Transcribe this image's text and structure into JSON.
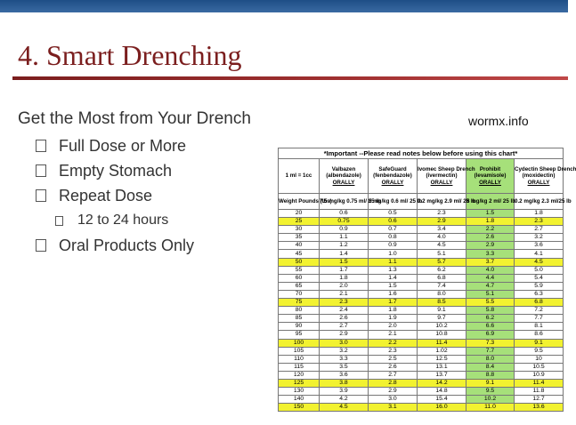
{
  "slide": {
    "title": "4. Smart Drenching",
    "lead": "Get the Most from Your Drench",
    "website": "wormx.info",
    "bullets": [
      {
        "text": "Full Dose or More",
        "sub": false
      },
      {
        "text": "Empty Stomach",
        "sub": false
      },
      {
        "text": "Repeat Dose",
        "sub": false
      },
      {
        "text": "12 to 24 hours",
        "sub": true
      },
      {
        "text": "Oral Products Only",
        "sub": false
      }
    ]
  },
  "table": {
    "note": "*Important --Please read notes below before using this chart*",
    "unit": "1 ml = 1cc",
    "weight_header": "Weight Pounds (lbs)",
    "products": [
      {
        "name": "Valbazen",
        "generic": "(albendazole)",
        "route": "ORALLY",
        "dose": "7.5 mg/kg 0.75 ml/ 25 lb"
      },
      {
        "name": "SafeGuard",
        "generic": "(fenbendazole)",
        "route": "ORALLY",
        "dose": "5 mg/kg 0.6 ml/ 25 lb"
      },
      {
        "name": "Ivomec Sheep Drench",
        "generic": "(ivermectin)",
        "route": "ORALLY",
        "dose": "0.2 mg/kg 2.9 ml/ 25 lb"
      },
      {
        "name": "Prohibit",
        "generic": "(levamisole)",
        "route": "ORALLY",
        "dose": "8 mg/kg 2 ml/ 25 lb"
      },
      {
        "name": "Cydectin Sheep Drench",
        "generic": "(moxidectin)",
        "route": "ORALLY",
        "dose": "0.2 mg/kg 2.3 ml/25 lb"
      }
    ],
    "highlight_color": "#f2f230",
    "product_highlight_color": "#a6e07a",
    "rows": [
      {
        "w": "20",
        "v": [
          "0.6",
          "0.5",
          "2.3",
          "1.5",
          "1.8"
        ],
        "hl": false
      },
      {
        "w": "25",
        "v": [
          "0.75",
          "0.6",
          "2.9",
          "1.8",
          "2.3"
        ],
        "hl": true
      },
      {
        "w": "30",
        "v": [
          "0.9",
          "0.7",
          "3.4",
          "2.2",
          "2.7"
        ],
        "hl": false
      },
      {
        "w": "35",
        "v": [
          "1.1",
          "0.8",
          "4.0",
          "2.6",
          "3.2"
        ],
        "hl": false
      },
      {
        "w": "40",
        "v": [
          "1.2",
          "0.9",
          "4.5",
          "2.9",
          "3.6"
        ],
        "hl": false
      },
      {
        "w": "45",
        "v": [
          "1.4",
          "1.0",
          "5.1",
          "3.3",
          "4.1"
        ],
        "hl": false
      },
      {
        "w": "50",
        "v": [
          "1.5",
          "1.1",
          "5.7",
          "3.7",
          "4.5"
        ],
        "hl": true
      },
      {
        "w": "55",
        "v": [
          "1.7",
          "1.3",
          "6.2",
          "4.0",
          "5.0"
        ],
        "hl": false
      },
      {
        "w": "60",
        "v": [
          "1.8",
          "1.4",
          "6.8",
          "4.4",
          "5.4"
        ],
        "hl": false
      },
      {
        "w": "65",
        "v": [
          "2.0",
          "1.5",
          "7.4",
          "4.7",
          "5.9"
        ],
        "hl": false
      },
      {
        "w": "70",
        "v": [
          "2.1",
          "1.6",
          "8.0",
          "5.1",
          "6.3"
        ],
        "hl": false
      },
      {
        "w": "75",
        "v": [
          "2.3",
          "1.7",
          "8.5",
          "5.5",
          "6.8"
        ],
        "hl": true
      },
      {
        "w": "80",
        "v": [
          "2.4",
          "1.8",
          "9.1",
          "5.8",
          "7.2"
        ],
        "hl": false
      },
      {
        "w": "85",
        "v": [
          "2.6",
          "1.9",
          "9.7",
          "6.2",
          "7.7"
        ],
        "hl": false
      },
      {
        "w": "90",
        "v": [
          "2.7",
          "2.0",
          "10.2",
          "6.6",
          "8.1"
        ],
        "hl": false
      },
      {
        "w": "95",
        "v": [
          "2.9",
          "2.1",
          "10.8",
          "6.9",
          "8.6"
        ],
        "hl": false
      },
      {
        "w": "100",
        "v": [
          "3.0",
          "2.2",
          "11.4",
          "7.3",
          "9.1"
        ],
        "hl": true
      },
      {
        "w": "105",
        "v": [
          "3.2",
          "2.3",
          "1.02",
          "7.7",
          "9.5"
        ],
        "hl": false
      },
      {
        "w": "110",
        "v": [
          "3.3",
          "2.5",
          "12.5",
          "8.0",
          "10"
        ],
        "hl": false
      },
      {
        "w": "115",
        "v": [
          "3.5",
          "2.6",
          "13.1",
          "8.4",
          "10.5"
        ],
        "hl": false
      },
      {
        "w": "120",
        "v": [
          "3.6",
          "2.7",
          "13.7",
          "8.8",
          "10.9"
        ],
        "hl": false
      },
      {
        "w": "125",
        "v": [
          "3.8",
          "2.8",
          "14.2",
          "9.1",
          "11.4"
        ],
        "hl": true
      },
      {
        "w": "130",
        "v": [
          "3.9",
          "2.9",
          "14.8",
          "9.5",
          "11.8"
        ],
        "hl": false
      },
      {
        "w": "140",
        "v": [
          "4.2",
          "3.0",
          "15.4",
          "10.2",
          "12.7"
        ],
        "hl": false
      },
      {
        "w": "150",
        "v": [
          "4.5",
          "3.1",
          "16.0",
          "11.0",
          "13.6"
        ],
        "hl": true
      }
    ]
  }
}
